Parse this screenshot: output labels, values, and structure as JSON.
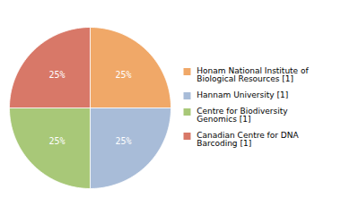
{
  "chart_data": {
    "type": "pie",
    "categories": [
      "Honam National Institute of\nBiological Resources [1]",
      "Hannam University [1]",
      "Centre for Biodiversity\nGenomics [1]",
      "Canadian Centre for DNA\nBarcoding [1]"
    ],
    "values": [
      25,
      25,
      25,
      25
    ],
    "value_labels": [
      "25%",
      "25%",
      "25%",
      "25%"
    ],
    "colors": [
      "#f0a868",
      "#a8bcd8",
      "#a8c878",
      "#d87868"
    ],
    "data_labels": true,
    "legend": "right"
  }
}
